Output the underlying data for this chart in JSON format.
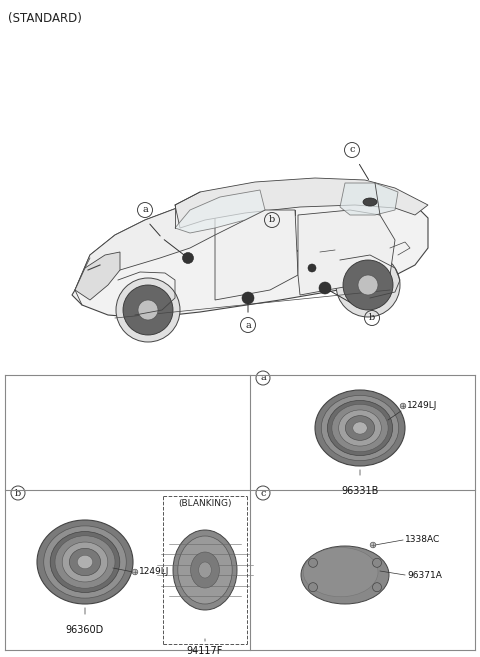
{
  "title": "(STANDARD)",
  "bg_color": "#ffffff",
  "panel_a": {
    "label": "a",
    "part1": "1249LJ",
    "part2": "96331B"
  },
  "panel_b": {
    "label": "b",
    "part1": "1249LJ",
    "part2": "96360D",
    "blanking_label": "(BLANKING)",
    "part3": "94117F"
  },
  "panel_c": {
    "label": "c",
    "part1": "1338AC",
    "part2": "96371A"
  },
  "car": {
    "body_color": "#f5f5f5",
    "line_color": "#444444",
    "speaker_color": "#333333"
  },
  "panel_line_color": "#888888",
  "label_color": "#222222",
  "font_size_label": 7.0,
  "font_size_part": 6.5,
  "font_size_title": 8.5
}
